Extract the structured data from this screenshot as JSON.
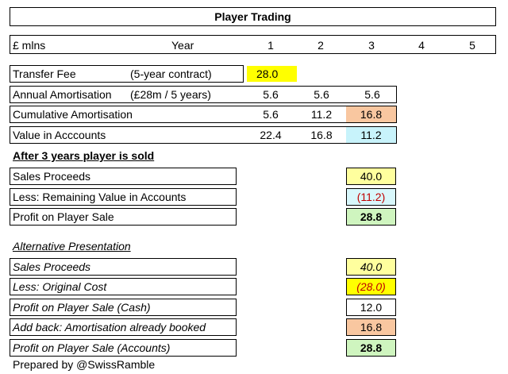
{
  "title": "Player Trading",
  "header": {
    "unit": "£ mlns",
    "year_label": "Year",
    "years": [
      "1",
      "2",
      "3",
      "4",
      "5"
    ]
  },
  "rows": {
    "transfer_fee": {
      "label": "Transfer Fee",
      "note": "(5-year contract)",
      "values": [
        "28.0"
      ],
      "highlight": "#ffff00"
    },
    "annual_amortisation": {
      "label": "Annual Amortisation",
      "note": "(£28m / 5 years)",
      "values": [
        "5.6",
        "5.6",
        "5.6"
      ]
    },
    "cumulative_amortisation": {
      "label": "Cumulative Amortisation",
      "values": [
        "5.6",
        "11.2",
        "16.8"
      ],
      "highlight": "#f9c7a0"
    },
    "value_in_accounts": {
      "label": "Value in Acccounts",
      "values": [
        "22.4",
        "16.8",
        "11.2"
      ],
      "highlight": "#c8f3fb"
    }
  },
  "section1": {
    "heading": "After 3 years player is sold",
    "items": [
      {
        "label": "Sales Proceeds",
        "value": "40.0",
        "bg": "#ffff9e",
        "style": "normal"
      },
      {
        "label": "Less: Remaining Value in Accounts",
        "value": "(11.2)",
        "bg": "#d8f7fb",
        "style": "red"
      },
      {
        "label": "Profit on Player Sale",
        "value": "28.8",
        "bg": "#cff5bf",
        "style": "bold"
      }
    ]
  },
  "section2": {
    "heading": "Alternative Presentation",
    "items": [
      {
        "label": "Sales Proceeds",
        "value": "40.0",
        "bg": "#ffff9e",
        "style": "italic"
      },
      {
        "label": "Less: Original Cost",
        "value": "(28.0)",
        "bg": "#ffff00",
        "style": "italic-red"
      },
      {
        "label": "Profit on Player Sale (Cash)",
        "value": "12.0",
        "bg": "#ffffff",
        "style": "italic"
      },
      {
        "label": "Add back: Amortisation already booked",
        "value": "16.8",
        "bg": "#f9c7a0",
        "style": "italic"
      },
      {
        "label": "Profit on Player Sale (Accounts)",
        "value": "28.8",
        "bg": "#cff5bf",
        "style": "italic-bold"
      }
    ]
  },
  "footer": "Prepared by @SwissRamble"
}
